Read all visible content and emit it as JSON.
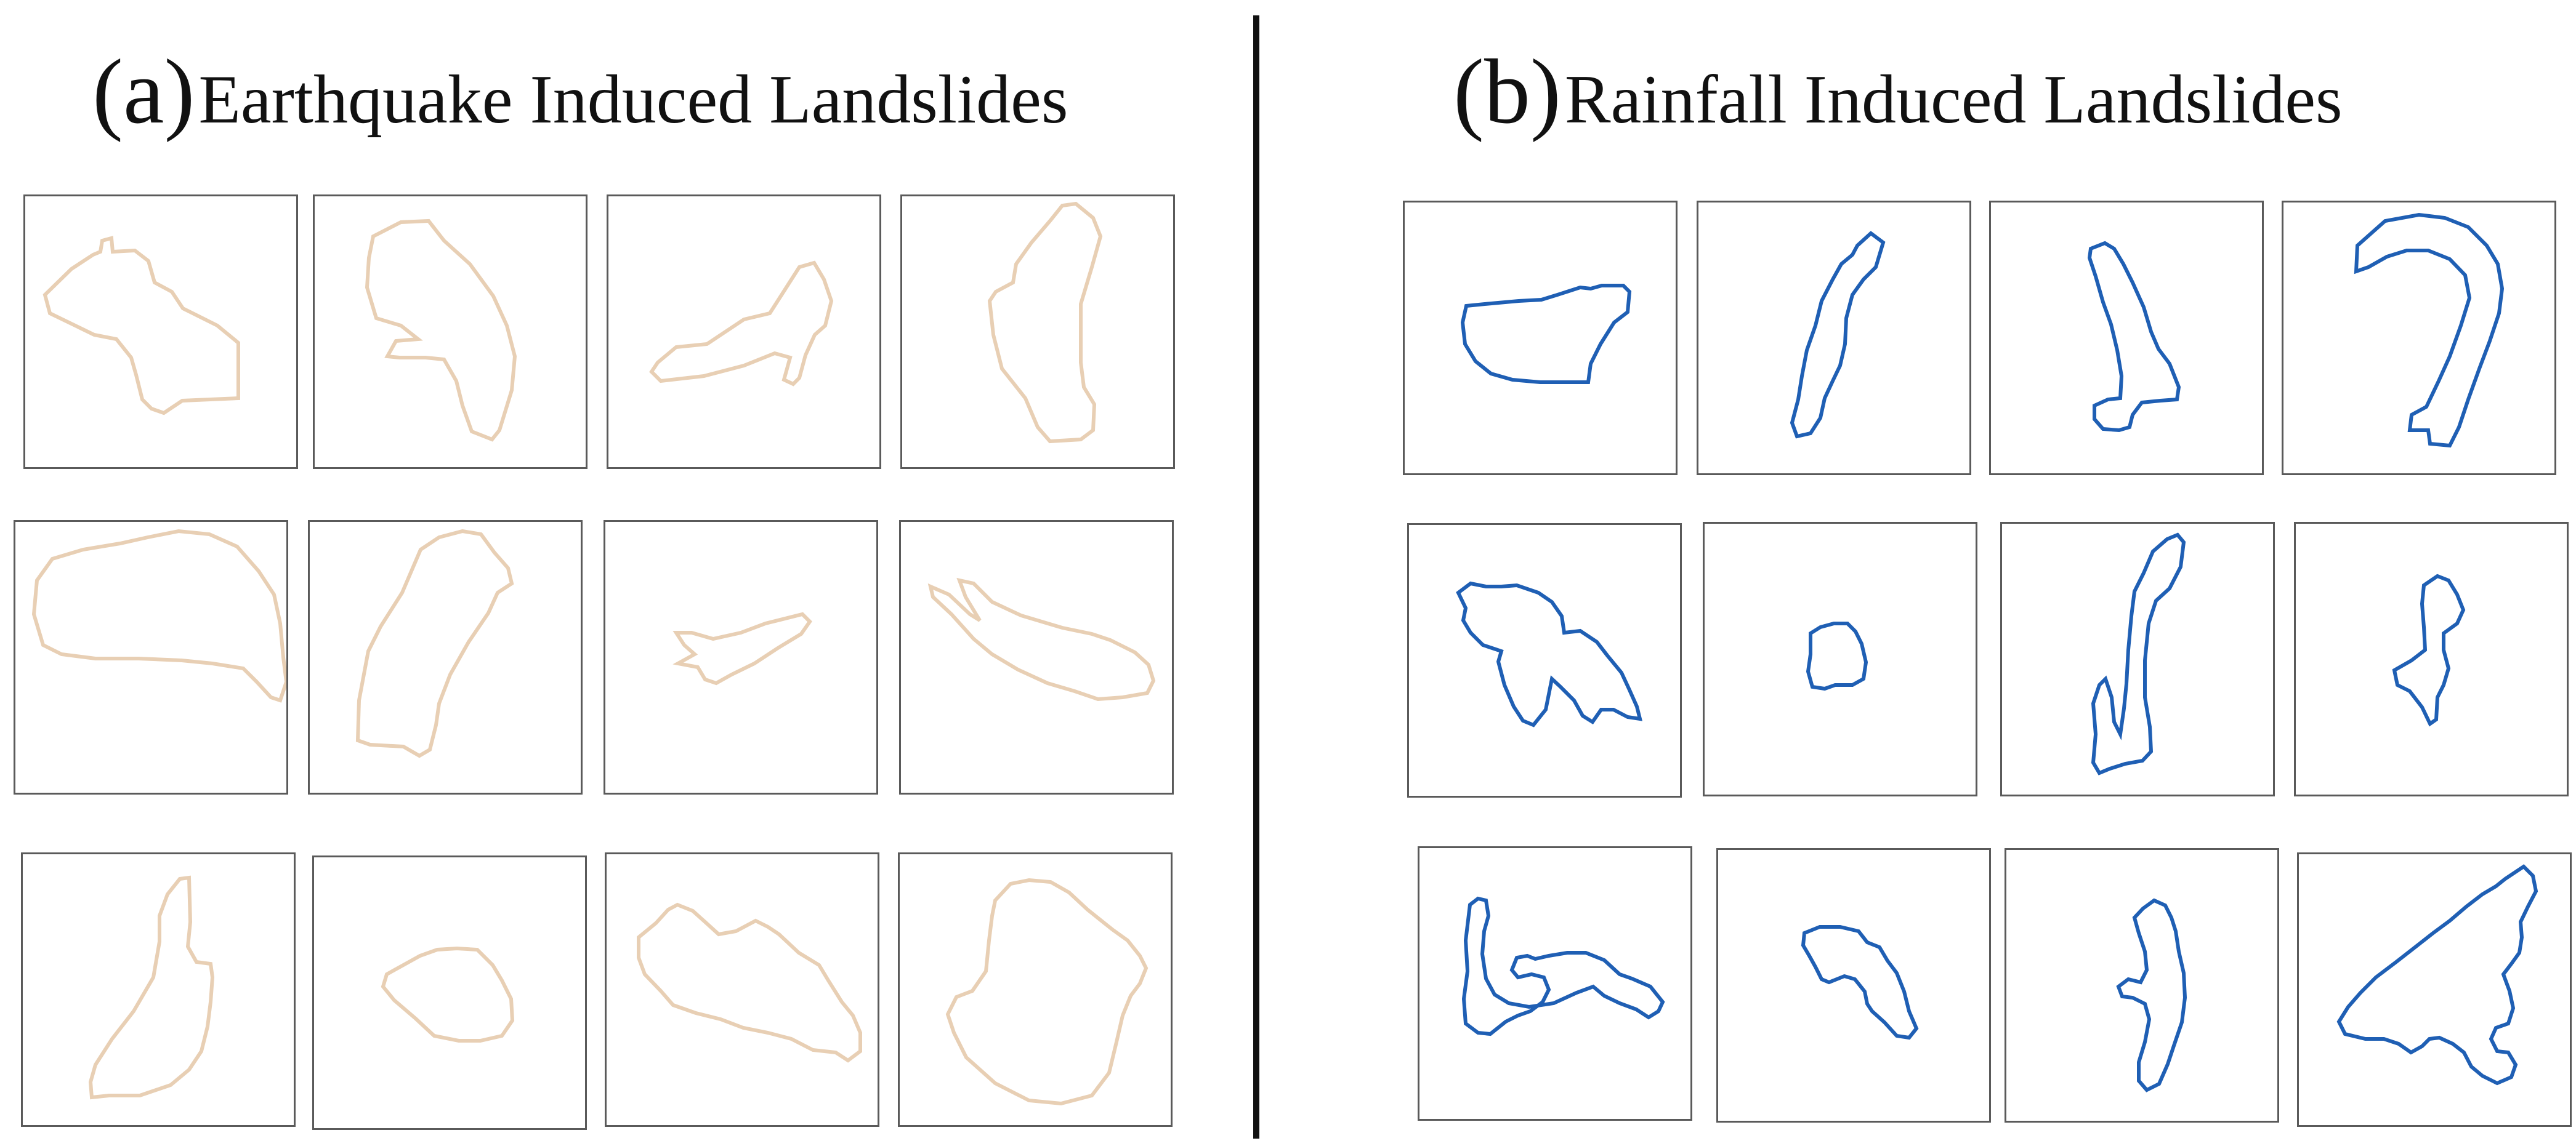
{
  "panels": [
    {
      "id": "a",
      "tag": "(a)",
      "title": "Earthquake Induced Landslides",
      "color": "#e8cfb4",
      "outlines": [
        "M 110 95 L 122 90 L 125 72 L 140 68 L 142 90 L 178 88 L 200 105 L 210 140 L 238 155 L 256 182 L 312 210 L 346 238 L 346 328 L 255 332 L 225 352 L 205 345 L 190 330 L 180 290 L 172 262 L 148 232 L 112 225 L 40 190 L 32 160 L 75 118 Z",
        "M 95 65 L 140 42 L 185 40 L 210 72 L 252 110 L 290 162 L 312 210 L 325 260 L 320 315 L 300 380 L 288 395 L 255 382 L 240 340 L 230 300 L 210 265 L 180 262 L 138 262 L 118 260 L 132 235 L 168 232 L 140 210 L 100 198 L 85 148 L 88 100 Z",
        "M 80 270 L 110 245 L 160 240 L 220 200 L 262 190 L 310 115 L 334 108 L 350 135 L 362 170 L 352 210 L 335 225 L 320 258 L 310 295 L 300 305 L 285 298 L 295 262 L 270 255 L 220 275 L 155 292 L 85 300 L 70 285 Z",
        "M 240 40 L 260 15 L 282 12 L 310 35 L 322 65 L 308 115 L 290 175 L 290 270 L 295 310 L 312 338 L 310 380 L 290 395 L 240 398 L 220 375 L 200 328 L 162 280 L 148 225 L 142 170 L 152 155 L 180 140 L 185 110 L 210 75 Z",
        "M 60 60 L 110 45 L 170 35 L 215 25 L 265 15 L 315 20 L 360 40 L 395 80 L 420 118 L 430 165 L 435 220 L 440 260 L 430 290 L 415 285 L 392 260 L 370 238 L 320 230 L 270 225 L 200 222 L 130 222 L 75 215 L 45 200 L 30 150 L 35 95 Z",
        "M 180 45 L 210 25 L 248 15 L 278 20 L 300 50 L 322 75 L 328 100 L 305 115 L 290 148 L 258 195 L 228 248 L 210 295 L 205 330 L 195 370 L 178 380 L 152 365 L 98 362 L 78 355 L 80 290 L 95 210 L 115 170 L 150 115 Z",
        "M 115 180 L 140 180 L 175 190 L 220 180 L 260 165 L 320 150 L 332 162 L 318 182 L 280 205 L 242 230 L 205 248 L 180 262 L 162 256 L 150 236 L 118 230 L 145 215 L 128 200 Z",
        "M 48 105 L 78 118 L 112 150 L 128 160 L 105 122 L 95 95 L 118 100 L 148 130 L 195 152 L 262 172 L 310 182 L 340 192 L 380 212 L 402 232 L 410 258 L 400 278 L 360 285 L 320 288 L 282 275 L 238 262 L 190 240 L 148 215 L 118 190 L 82 150 L 52 122 Z",
        "M 235 65 L 255 40 L 270 38 L 272 110 L 268 150 L 282 175 L 305 178 L 308 200 L 305 240 L 300 280 L 290 320 L 270 350 L 240 375 L 190 392 L 140 392 L 112 395 L 110 370 L 118 342 L 145 300 L 180 255 L 212 200 L 222 142 L 222 100 Z",
        "M 118 190 L 145 175 L 172 160 L 200 150 L 232 148 L 265 150 L 290 175 L 305 200 L 320 230 L 322 265 L 305 290 L 270 298 L 235 298 L 195 290 L 165 262 L 130 232 L 112 210 Z",
        "M 52 135 L 80 112 L 100 90 L 115 82 L 140 92 L 160 110 L 182 130 L 210 125 L 242 108 L 262 118 L 280 130 L 312 160 L 345 180 L 360 205 L 382 240 L 400 262 L 412 290 L 412 320 L 392 335 L 372 322 L 335 318 L 300 300 L 262 290 L 222 282 L 185 268 L 145 258 L 108 245 L 88 222 L 62 195 L 52 168 Z",
        "M 155 75 L 180 48 L 210 42 L 245 45 L 275 62 L 305 90 L 345 122 L 370 140 L 390 165 L 400 185 L 390 210 L 375 230 L 362 262 L 352 305 L 340 355 L 312 392 L 262 405 L 210 400 L 155 372 L 108 330 L 88 290 L 78 260 L 92 232 L 118 222 L 140 190 L 145 140 L 150 100 Z"
      ]
    },
    {
      "id": "b",
      "tag": "(b)",
      "title": "Rainfall Induced Landslides",
      "color": "#1f5fb4",
      "outlines": [
        "M 100 168 L 130 165 L 185 160 L 222 158 L 248 150 L 285 138 L 302 140 L 320 135 L 355 135 L 365 145 L 362 178 L 340 195 L 318 230 L 302 262 L 298 292 L 220 292 L 175 288 L 140 278 L 115 258 L 98 230 L 94 195 Z",
        "M 258 70 L 280 50 L 300 65 L 288 105 L 268 125 L 250 150 L 240 188 L 238 230 L 230 265 L 218 290 L 205 318 L 198 350 L 182 375 L 160 380 L 152 358 L 162 320 L 168 282 L 176 240 L 190 200 L 200 160 L 218 125 L 232 100 L 250 85 Z",
        "M 162 75 L 185 66 L 200 75 L 215 100 L 230 130 L 248 170 L 260 210 L 272 238 L 290 262 L 305 300 L 302 320 L 275 322 L 245 325 L 230 345 L 225 365 L 208 370 L 182 368 L 168 352 L 168 330 L 190 320 L 210 318 L 212 282 L 205 240 L 195 198 L 182 162 L 170 120 L 160 90 Z",
        "M 120 70 L 165 30 L 220 20 L 262 25 L 300 40 L 330 70 L 348 100 L 355 140 L 350 180 L 335 225 L 318 270 L 300 320 L 285 365 L 270 395 L 238 392 L 235 370 L 205 370 L 208 345 L 232 332 L 252 290 L 270 250 L 288 200 L 302 155 L 295 118 L 270 92 L 235 78 L 200 78 L 168 88 L 138 105 L 118 112 Z",
        "M 80 110 L 100 95 L 125 100 L 150 100 L 175 98 L 210 110 L 232 125 L 248 148 L 252 175 L 278 172 L 305 190 L 322 212 L 345 240 L 358 268 L 370 295 L 375 315 L 355 312 L 332 300 L 312 300 L 298 320 L 282 310 L 268 285 L 245 262 L 232 250 L 222 300 L 202 325 L 185 318 L 170 295 L 155 260 L 145 222 L 150 205 L 120 195 L 100 175 L 88 155 L 92 135 Z",
        "M 172 178 L 188 168 L 210 162 L 232 162 L 245 175 L 255 195 L 262 225 L 258 252 L 240 262 L 212 262 L 195 268 L 175 265 L 168 240 L 172 212 Z",
        "M 230 80 L 245 45 L 268 25 L 285 18 L 295 30 L 290 70 L 272 105 L 250 125 L 238 162 L 232 222 L 232 282 L 240 330 L 242 370 L 228 385 L 200 390 L 175 398 L 158 405 L 148 388 L 152 342 L 148 292 L 158 262 L 168 252 L 178 282 L 182 322 L 192 342 L 198 300 L 202 260 L 205 205 L 210 150 L 215 110 Z",
        "M 208 100 L 230 85 L 248 92 L 262 115 L 272 140 L 262 162 L 240 178 L 240 205 L 248 235 L 240 262 L 230 282 L 228 318 L 218 325 L 205 298 L 185 272 L 165 262 L 160 238 L 188 222 L 210 205 L 208 168 L 205 130 Z",
        "M 82 92 L 95 82 L 108 85 L 112 110 L 105 135 L 102 172 L 108 212 L 122 238 L 145 252 L 178 258 L 218 252 L 255 235 L 282 225 L 300 240 L 325 252 L 352 262 L 372 275 L 388 265 L 395 250 L 375 225 L 345 212 L 325 205 L 300 182 L 270 170 L 240 170 L 210 175 L 188 180 L 175 175 L 158 178 L 150 198 L 160 210 L 182 205 L 202 210 L 210 230 L 200 250 L 180 265 L 160 272 L 140 282 L 115 302 L 95 300 L 75 285 L 72 245 L 78 200 L 75 150 Z",
        "M 140 135 L 165 125 L 198 125 L 228 132 L 242 150 L 262 158 L 275 180 L 290 200 L 302 230 L 310 262 L 322 290 L 310 305 L 290 302 L 270 280 L 250 262 L 242 250 L 238 230 L 222 210 L 205 205 L 180 215 L 168 210 L 158 190 L 148 172 L 138 155 Z",
        "M 222 95 L 240 82 L 258 90 L 268 110 L 275 132 L 280 165 L 288 200 L 290 240 L 285 280 L 272 318 L 262 348 L 248 380 L 228 390 L 215 375 L 215 345 L 225 312 L 232 275 L 225 250 L 205 240 L 188 238 L 182 222 L 198 210 L 218 215 L 228 195 L 225 165 L 215 135 L 208 110 Z",
        "M 335 40 L 365 20 L 380 35 L 385 60 L 372 85 L 360 110 L 362 135 L 358 160 L 345 178 L 332 195 L 342 222 L 348 250 L 340 275 L 320 282 L 312 300 L 322 320 L 340 322 L 352 342 L 345 362 L 322 372 L 298 360 L 280 345 L 268 322 L 250 308 L 228 298 L 212 300 L 200 312 L 182 322 L 162 308 L 138 300 L 108 300 L 75 292 L 65 272 L 80 248 L 100 225 L 125 200 L 158 175 L 190 150 L 218 128 L 245 108 L 272 85 L 298 65 L 320 52 Z"
      ]
    }
  ]
}
